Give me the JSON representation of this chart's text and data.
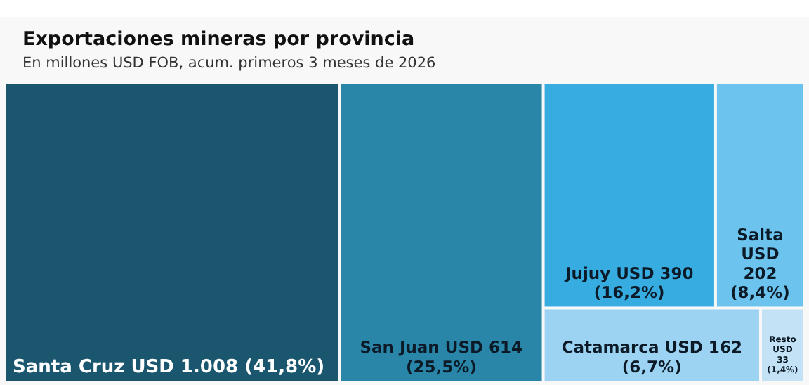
{
  "chart_data": {
    "type": "other",
    "title": "Exportaciones mineras por provincia",
    "subtitle": "En millones USD FOB, acum. primeros 3 meses de 2026",
    "categories": [
      "Santa Cruz",
      "San Juan",
      "Jujuy",
      "Salta",
      "Catamarca",
      "Resto"
    ],
    "values": [
      1008,
      614,
      390,
      202,
      162,
      33
    ],
    "value_labels": [
      "USD 1.008 (41,8%)",
      "USD 614 (25,5%)",
      "USD 390 (16,2%)",
      "USD 202 (8,4%)",
      "USD 162 (6,7%)",
      "USD 33 (1,4%)"
    ],
    "colors": [
      "#1a566e",
      "#2a86a8",
      "#36ace0",
      "#6bc3ee",
      "#9dd3f2",
      "#c4e2f6"
    ]
  }
}
